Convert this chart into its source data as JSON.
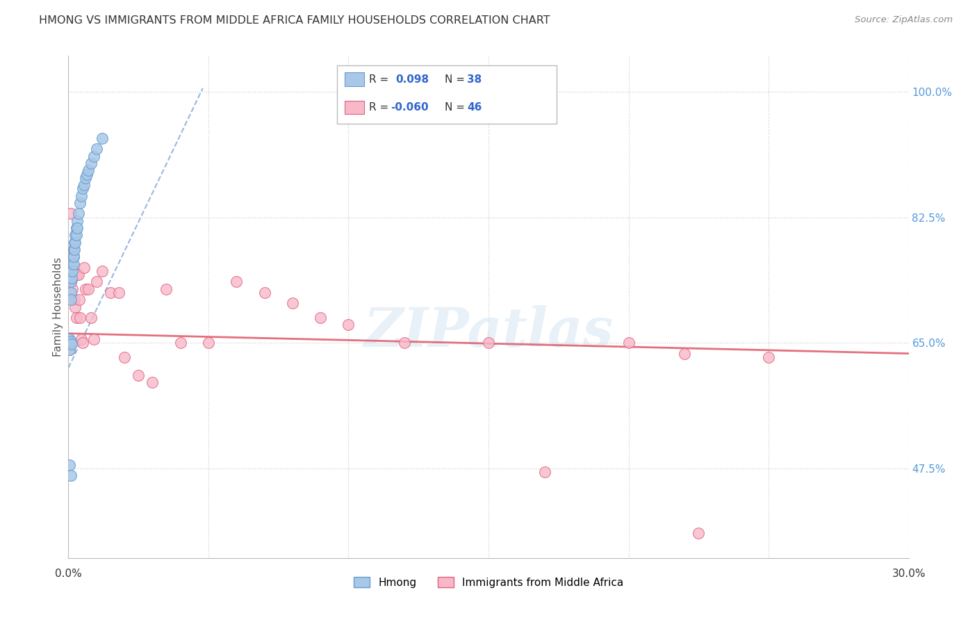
{
  "title": "HMONG VS IMMIGRANTS FROM MIDDLE AFRICA FAMILY HOUSEHOLDS CORRELATION CHART",
  "source": "Source: ZipAtlas.com",
  "ylabel": "Family Households",
  "y_ticks": [
    47.5,
    65.0,
    82.5,
    100.0
  ],
  "y_tick_labels": [
    "47.5%",
    "65.0%",
    "82.5%",
    "100.0%"
  ],
  "x_min": 0.0,
  "x_max": 30.0,
  "y_min": 35.0,
  "y_max": 105.0,
  "hmong_color": "#a8c8e8",
  "hmong_edge_color": "#6699cc",
  "middle_africa_color": "#f8b8c8",
  "middle_africa_edge_color": "#e06080",
  "trend_hmong_color": "#88aadd",
  "trend_africa_color": "#e06070",
  "watermark": "ZIPatlas",
  "hmong_x": [
    0.05,
    0.05,
    0.08,
    0.1,
    0.1,
    0.1,
    0.12,
    0.12,
    0.15,
    0.15,
    0.18,
    0.18,
    0.2,
    0.2,
    0.22,
    0.22,
    0.25,
    0.25,
    0.28,
    0.28,
    0.3,
    0.3,
    0.35,
    0.4,
    0.45,
    0.5,
    0.55,
    0.6,
    0.65,
    0.7,
    0.8,
    0.9,
    1.0,
    1.2,
    0.05,
    0.08,
    0.1,
    0.12
  ],
  "hmong_y": [
    65.5,
    64.0,
    65.0,
    73.5,
    72.0,
    71.0,
    75.0,
    74.0,
    76.0,
    75.0,
    77.0,
    76.0,
    78.0,
    77.0,
    79.0,
    78.0,
    80.0,
    79.0,
    81.0,
    80.0,
    82.0,
    81.0,
    83.0,
    84.5,
    85.5,
    86.5,
    87.0,
    88.0,
    88.5,
    89.0,
    90.0,
    91.0,
    92.0,
    93.5,
    48.0,
    46.5,
    65.2,
    64.8
  ],
  "africa_x": [
    0.05,
    0.05,
    0.08,
    0.1,
    0.1,
    0.12,
    0.15,
    0.15,
    0.18,
    0.2,
    0.22,
    0.25,
    0.28,
    0.3,
    0.35,
    0.38,
    0.4,
    0.45,
    0.5,
    0.55,
    0.6,
    0.7,
    0.8,
    0.9,
    1.0,
    1.2,
    1.5,
    1.8,
    2.0,
    2.5,
    3.0,
    3.5,
    4.0,
    5.0,
    6.0,
    7.0,
    8.0,
    9.0,
    10.0,
    12.0,
    15.0,
    17.0,
    20.0,
    22.0,
    25.0,
    22.5
  ],
  "africa_y": [
    65.0,
    64.0,
    83.0,
    76.5,
    73.5,
    75.5,
    74.0,
    72.5,
    77.0,
    78.0,
    71.0,
    70.0,
    68.5,
    74.5,
    74.5,
    71.0,
    68.5,
    65.5,
    65.0,
    75.5,
    72.5,
    72.5,
    68.5,
    65.5,
    73.5,
    75.0,
    72.0,
    72.0,
    63.0,
    60.5,
    59.5,
    72.5,
    65.0,
    65.0,
    73.5,
    72.0,
    70.5,
    68.5,
    67.5,
    65.0,
    65.0,
    47.0,
    65.0,
    63.5,
    63.0,
    38.5
  ],
  "africa_trend_x0": 0.0,
  "africa_trend_x1": 30.0,
  "africa_trend_y0": 66.3,
  "africa_trend_y1": 63.5,
  "hmong_trend_x0": 0.0,
  "hmong_trend_x1": 4.8,
  "hmong_trend_y0": 61.5,
  "hmong_trend_y1": 100.5
}
